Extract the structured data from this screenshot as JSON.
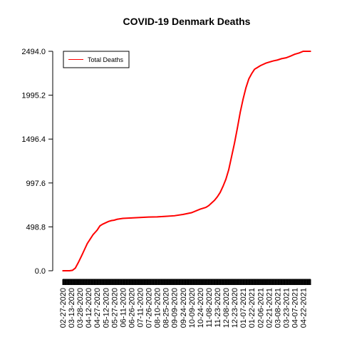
{
  "chart_data": {
    "type": "line",
    "title": "COVID-19 Denmark Deaths",
    "xlabel": "",
    "ylabel": "",
    "ylim": [
      0,
      2494
    ],
    "y_ticks": [
      0.0,
      498.8,
      997.6,
      1496.4,
      1995.2,
      2494.0
    ],
    "y_tick_labels": [
      "0.0",
      "498.8",
      "997.6",
      "1496.4",
      "1995.2",
      "2494.0"
    ],
    "x_tick_labels": [
      "02-27-2020",
      "03-13-2020",
      "03-28-2020",
      "04-12-2020",
      "04-27-2020",
      "05-12-2020",
      "05-27-2020",
      "06-11-2020",
      "06-26-2020",
      "07-11-2020",
      "07-26-2020",
      "08-10-2020",
      "08-25-2020",
      "09-09-2020",
      "09-24-2020",
      "10-09-2020",
      "10-24-2020",
      "11-08-2020",
      "11-23-2020",
      "12-08-2020",
      "12-23-2020",
      "01-07-2021",
      "01-22-2021",
      "02-06-2021",
      "02-21-2021",
      "03-08-2021",
      "03-23-2021",
      "04-07-2021",
      "04-22-2021"
    ],
    "legend": {
      "position": "top-left",
      "entries": [
        "Total Deaths"
      ]
    },
    "grid": false,
    "series": [
      {
        "name": "Total Deaths",
        "color": "#ff0000",
        "x": [
          "2020-02-27",
          "2020-03-10",
          "2020-03-15",
          "2020-03-20",
          "2020-03-25",
          "2020-03-31",
          "2020-04-05",
          "2020-04-10",
          "2020-04-15",
          "2020-04-20",
          "2020-04-27",
          "2020-05-02",
          "2020-05-07",
          "2020-05-12",
          "2020-05-17",
          "2020-05-22",
          "2020-05-27",
          "2020-06-01",
          "2020-06-06",
          "2020-06-11",
          "2020-06-26",
          "2020-07-11",
          "2020-07-26",
          "2020-08-10",
          "2020-08-25",
          "2020-09-09",
          "2020-09-24",
          "2020-10-09",
          "2020-10-24",
          "2020-11-03",
          "2020-11-08",
          "2020-11-13",
          "2020-11-18",
          "2020-11-23",
          "2020-11-28",
          "2020-12-03",
          "2020-12-08",
          "2020-12-13",
          "2020-12-18",
          "2020-12-23",
          "2020-12-28",
          "2021-01-02",
          "2021-01-07",
          "2021-01-12",
          "2021-01-17",
          "2021-01-22",
          "2021-01-27",
          "2021-02-01",
          "2021-02-06",
          "2021-02-11",
          "2021-02-16",
          "2021-02-21",
          "2021-03-01",
          "2021-03-08",
          "2021-03-15",
          "2021-03-23",
          "2021-03-31",
          "2021-04-07",
          "2021-04-15",
          "2021-04-22",
          "2021-04-28",
          "2021-05-05"
        ],
        "values": [
          0,
          0,
          5,
          30,
          90,
          170,
          240,
          310,
          360,
          410,
          460,
          510,
          530,
          545,
          560,
          570,
          575,
          585,
          590,
          595,
          600,
          605,
          610,
          612,
          618,
          625,
          640,
          660,
          700,
          720,
          740,
          770,
          800,
          840,
          890,
          960,
          1040,
          1150,
          1300,
          1450,
          1620,
          1800,
          1950,
          2080,
          2180,
          2240,
          2290,
          2310,
          2330,
          2345,
          2360,
          2370,
          2385,
          2395,
          2410,
          2420,
          2440,
          2460,
          2475,
          2494,
          2494,
          2494
        ]
      }
    ]
  }
}
